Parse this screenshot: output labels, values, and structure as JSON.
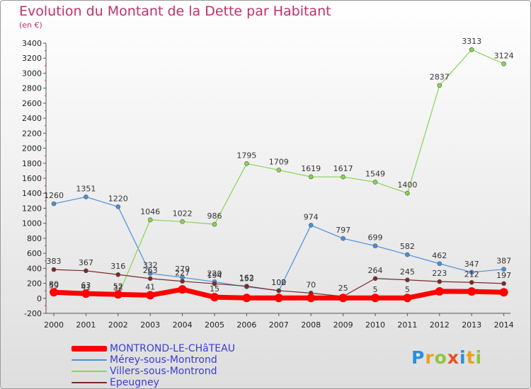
{
  "title": "Evolution du Montant de la Dette par Habitant",
  "unit_label": "(en €)",
  "logo": {
    "text": "Proxiti",
    "letters": [
      "P",
      "r",
      "o",
      "x",
      "i",
      "t",
      "i"
    ],
    "colors": [
      "#2a8fd8",
      "#e8a020",
      "#8dc63f",
      "#e85020",
      "#2a8fd8",
      "#e8a020",
      "#8dc63f"
    ]
  },
  "chart_data": {
    "type": "line",
    "title": "Evolution du Montant de la Dette par Habitant",
    "subtitle": "(en €)",
    "x": [
      "2000",
      "2001",
      "2002",
      "2003",
      "2004",
      "2005",
      "2006",
      "2007",
      "2008",
      "2009",
      "2010",
      "2011",
      "2012",
      "2013",
      "2014"
    ],
    "ylim": [
      -200,
      3400
    ],
    "yticks": [
      -200,
      0,
      200,
      400,
      600,
      800,
      1000,
      1200,
      1400,
      1600,
      1800,
      2000,
      2200,
      2400,
      2600,
      2800,
      3000,
      3200,
      3400
    ],
    "grid": false,
    "legend_position": "bottom-left",
    "series": [
      {
        "name": "MONTROND-LE-CHâTEAU",
        "color": "#ff0000",
        "width": 7,
        "values": [
          80,
          63,
          52,
          41,
          119,
          15,
          5,
          5,
          5,
          5,
          5,
          5,
          92,
          91,
          80
        ],
        "labels": [
          "80",
          "63",
          "52",
          "41",
          "",
          "15",
          "",
          "",
          "",
          "",
          "5",
          "5",
          "",
          "",
          ""
        ]
      },
      {
        "name": "Mérey-sous-Montrond",
        "color": "#4a90d9",
        "width": 1.2,
        "values": [
          1260,
          1351,
          1220,
          332,
          279,
          220,
          153,
          100,
          974,
          797,
          699,
          582,
          462,
          347,
          387
        ],
        "labels": [
          "1260",
          "1351",
          "1220",
          "332",
          "279",
          "220",
          "153",
          "100",
          "974",
          "797",
          "699",
          "582",
          "462",
          "347",
          "387"
        ]
      },
      {
        "name": "Villers-sous-Montrond",
        "color": "#88d452",
        "width": 1.2,
        "values": [
          59,
          41,
          32,
          1046,
          1022,
          986,
          1795,
          1709,
          1619,
          1617,
          1549,
          1400,
          2837,
          3313,
          3124
        ],
        "labels": [
          "59",
          "41",
          "32",
          "1046",
          "1022",
          "986",
          "1795",
          "1709",
          "1619",
          "1617",
          "1549",
          "1400",
          "2837",
          "3313",
          "3124"
        ]
      },
      {
        "name": "Epeugney",
        "color": "#7a2a2a",
        "width": 1.2,
        "values": [
          383,
          367,
          316,
          263,
          227,
          194,
          162,
          102,
          70,
          25,
          264,
          245,
          223,
          212,
          197
        ],
        "labels": [
          "383",
          "367",
          "316",
          "263",
          "227",
          "194",
          "162",
          "102",
          "70",
          "25",
          "264",
          "245",
          "223",
          "212",
          "197"
        ]
      }
    ]
  }
}
